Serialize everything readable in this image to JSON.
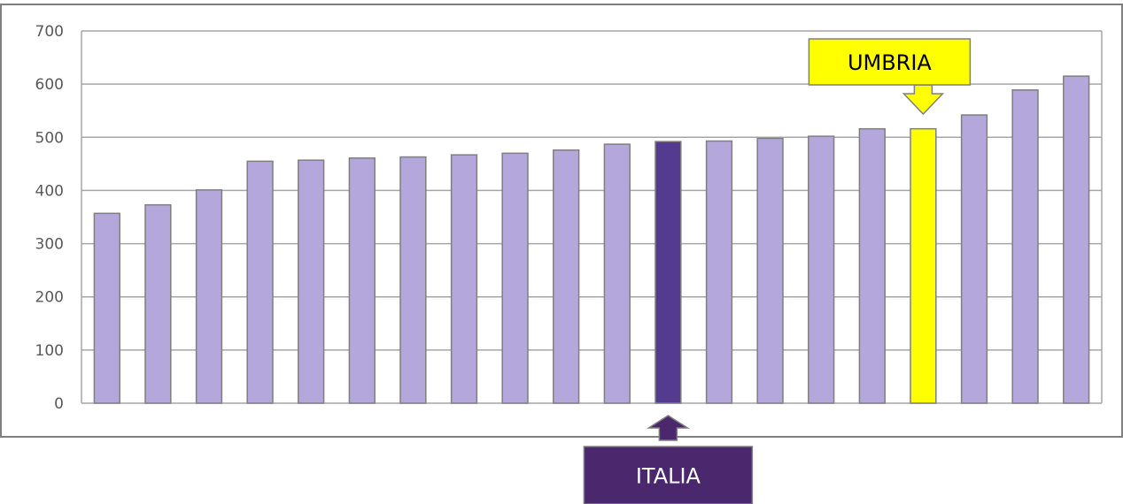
{
  "chart_data": {
    "type": "bar",
    "title": "",
    "xlabel": "",
    "ylabel": "",
    "ylim": [
      0,
      700
    ],
    "yticks": [
      0,
      100,
      200,
      300,
      400,
      500,
      600,
      700
    ],
    "grid": true,
    "legend": "none",
    "values": [
      357,
      373,
      401,
      455,
      457,
      461,
      463,
      467,
      470,
      476,
      487,
      492,
      493,
      498,
      502,
      516,
      516,
      542,
      589,
      615
    ],
    "highlights": [
      {
        "index": 11,
        "label": "ITALIA",
        "color": "#553b90",
        "label_color": "#ffffff",
        "label_bg": "#4b286e",
        "arrow": "up",
        "position": "below"
      },
      {
        "index": 16,
        "label": "UMBRIA",
        "color": "#ffff00",
        "label_color": "#000000",
        "label_bg": "#ffff00",
        "arrow": "down",
        "position": "above"
      }
    ]
  },
  "colors": {
    "bar": "#b4a7dc",
    "bar_stroke": "#7f7f7f",
    "grid": "#a6a6a6",
    "frame": "#7f7f7f"
  }
}
